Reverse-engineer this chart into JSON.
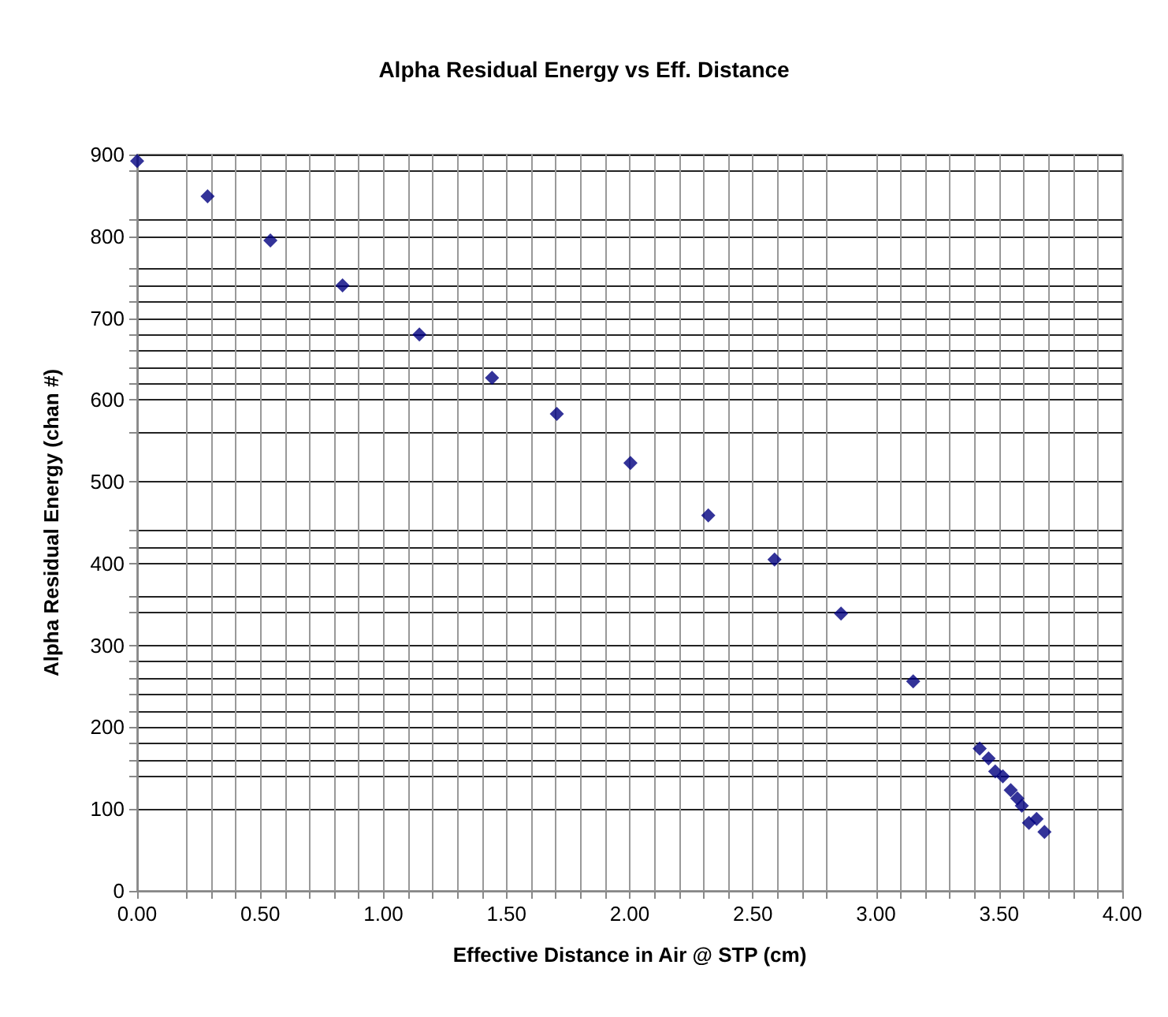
{
  "chart_data": {
    "type": "scatter",
    "title": "Alpha Residual Energy vs Eff. Distance",
    "xlabel": "Effective Distance in Air @ STP (cm)",
    "ylabel": "Alpha Residual Energy (chan #)",
    "x": [
      0.0,
      0.286,
      0.541,
      0.834,
      1.146,
      1.441,
      1.704,
      2.003,
      2.319,
      2.588,
      2.858,
      3.151,
      3.421,
      3.457,
      3.484,
      3.515,
      3.547,
      3.574,
      3.592,
      3.621,
      3.652,
      3.684
    ],
    "values": [
      892,
      849,
      795,
      740,
      680,
      627,
      583,
      523,
      459,
      405,
      339,
      256,
      174,
      162,
      146,
      140,
      123,
      113,
      104,
      83,
      88,
      72
    ],
    "color": "#000080",
    "marker": "diamond",
    "grid": true,
    "xlim": [
      0,
      4
    ],
    "ylim": [
      0,
      900
    ],
    "xticks": [
      {
        "value": 0,
        "label": "0.00"
      },
      {
        "value": 0.2,
        "label": null
      },
      {
        "value": 0.3,
        "label": null
      },
      {
        "value": 0.4,
        "label": null
      },
      {
        "value": 0.5,
        "label": "0.50"
      },
      {
        "value": 0.6,
        "label": null
      },
      {
        "value": 0.7,
        "label": null
      },
      {
        "value": 0.8,
        "label": null
      },
      {
        "value": 0.9,
        "label": null
      },
      {
        "value": 1,
        "label": "1.00"
      },
      {
        "value": 1.1,
        "label": null
      },
      {
        "value": 1.2,
        "label": null
      },
      {
        "value": 1.3,
        "label": null
      },
      {
        "value": 1.4,
        "label": null
      },
      {
        "value": 1.5,
        "label": "1.50"
      },
      {
        "value": 1.6,
        "label": null
      },
      {
        "value": 1.7,
        "label": null
      },
      {
        "value": 1.8,
        "label": null
      },
      {
        "value": 1.9,
        "label": null
      },
      {
        "value": 2,
        "label": "2.00"
      },
      {
        "value": 2.1,
        "label": null
      },
      {
        "value": 2.2,
        "label": null
      },
      {
        "value": 2.3,
        "label": null
      },
      {
        "value": 2.4,
        "label": null
      },
      {
        "value": 2.5,
        "label": "2.50"
      },
      {
        "value": 2.6,
        "label": null
      },
      {
        "value": 2.7,
        "label": null
      },
      {
        "value": 2.8,
        "label": null
      },
      {
        "value": 3,
        "label": "3.00"
      },
      {
        "value": 3.1,
        "label": null
      },
      {
        "value": 3.2,
        "label": null
      },
      {
        "value": 3.3,
        "label": null
      },
      {
        "value": 3.4,
        "label": null
      },
      {
        "value": 3.5,
        "label": "3.50"
      },
      {
        "value": 3.6,
        "label": null
      },
      {
        "value": 3.7,
        "label": null
      },
      {
        "value": 3.8,
        "label": null
      },
      {
        "value": 3.9,
        "label": null
      },
      {
        "value": 4,
        "label": "4.00"
      }
    ],
    "yticks": [
      0,
      100,
      {
        "value": 140,
        "label": null
      },
      {
        "value": 160,
        "label": null
      },
      {
        "value": 180,
        "label": null
      },
      200,
      {
        "value": 220,
        "label": null
      },
      {
        "value": 240,
        "label": null
      },
      {
        "value": 260,
        "label": null
      },
      {
        "value": 280,
        "label": null
      },
      300,
      {
        "value": 340,
        "label": null
      },
      {
        "value": 360,
        "label": null
      },
      400,
      {
        "value": 420,
        "label": null
      },
      {
        "value": 440,
        "label": null
      },
      500,
      {
        "value": 560,
        "label": null
      },
      600,
      {
        "value": 620,
        "label": null
      },
      {
        "value": 640,
        "label": null
      },
      {
        "value": 660,
        "label": null
      },
      {
        "value": 680,
        "label": null
      },
      700,
      {
        "value": 720,
        "label": null
      },
      {
        "value": 740,
        "label": null
      },
      {
        "value": 760,
        "label": null
      },
      800,
      {
        "value": 820,
        "label": null
      },
      {
        "value": 880,
        "label": null
      },
      900
    ]
  }
}
